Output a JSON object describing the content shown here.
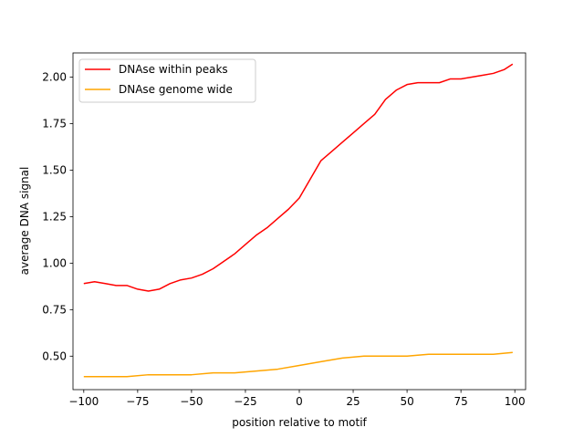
{
  "chart_data": {
    "type": "line",
    "title": "",
    "xlabel": "position relative to motif",
    "ylabel": "average DNA signal",
    "xlim": [
      -105,
      105
    ],
    "ylim": [
      0.32,
      2.13
    ],
    "xticks": [
      -100,
      -75,
      -50,
      -25,
      0,
      25,
      50,
      75,
      100
    ],
    "xtick_labels": [
      "−100",
      "−75",
      "−50",
      "−25",
      "0",
      "25",
      "50",
      "75",
      "100"
    ],
    "yticks": [
      0.5,
      0.75,
      1.0,
      1.25,
      1.5,
      1.75,
      2.0
    ],
    "ytick_labels": [
      "0.50",
      "0.75",
      "1.00",
      "1.25",
      "1.50",
      "1.75",
      "2.00"
    ],
    "grid": false,
    "legend": {
      "position": "top-left"
    },
    "series": [
      {
        "name": "DNAse within peaks",
        "color": "#ff0000",
        "x": [
          -100,
          -95,
          -90,
          -85,
          -80,
          -75,
          -70,
          -65,
          -60,
          -55,
          -50,
          -45,
          -40,
          -35,
          -30,
          -25,
          -20,
          -15,
          -10,
          -5,
          0,
          5,
          10,
          15,
          20,
          25,
          30,
          35,
          40,
          45,
          50,
          55,
          60,
          65,
          70,
          75,
          80,
          85,
          90,
          95,
          99
        ],
        "y": [
          0.89,
          0.9,
          0.89,
          0.88,
          0.88,
          0.86,
          0.85,
          0.86,
          0.89,
          0.91,
          0.92,
          0.94,
          0.97,
          1.01,
          1.05,
          1.1,
          1.15,
          1.19,
          1.24,
          1.29,
          1.35,
          1.45,
          1.55,
          1.6,
          1.65,
          1.7,
          1.75,
          1.8,
          1.88,
          1.93,
          1.96,
          1.97,
          1.97,
          1.97,
          1.99,
          1.99,
          2.0,
          2.01,
          2.02,
          2.04,
          2.07
        ]
      },
      {
        "name": "DNAse genome wide",
        "color": "#ffa500",
        "x": [
          -100,
          -90,
          -80,
          -70,
          -60,
          -50,
          -40,
          -30,
          -20,
          -10,
          0,
          10,
          20,
          30,
          40,
          50,
          60,
          70,
          80,
          90,
          99
        ],
        "y": [
          0.39,
          0.39,
          0.39,
          0.4,
          0.4,
          0.4,
          0.41,
          0.41,
          0.42,
          0.43,
          0.45,
          0.47,
          0.49,
          0.5,
          0.5,
          0.5,
          0.51,
          0.51,
          0.51,
          0.51,
          0.52
        ]
      }
    ]
  }
}
